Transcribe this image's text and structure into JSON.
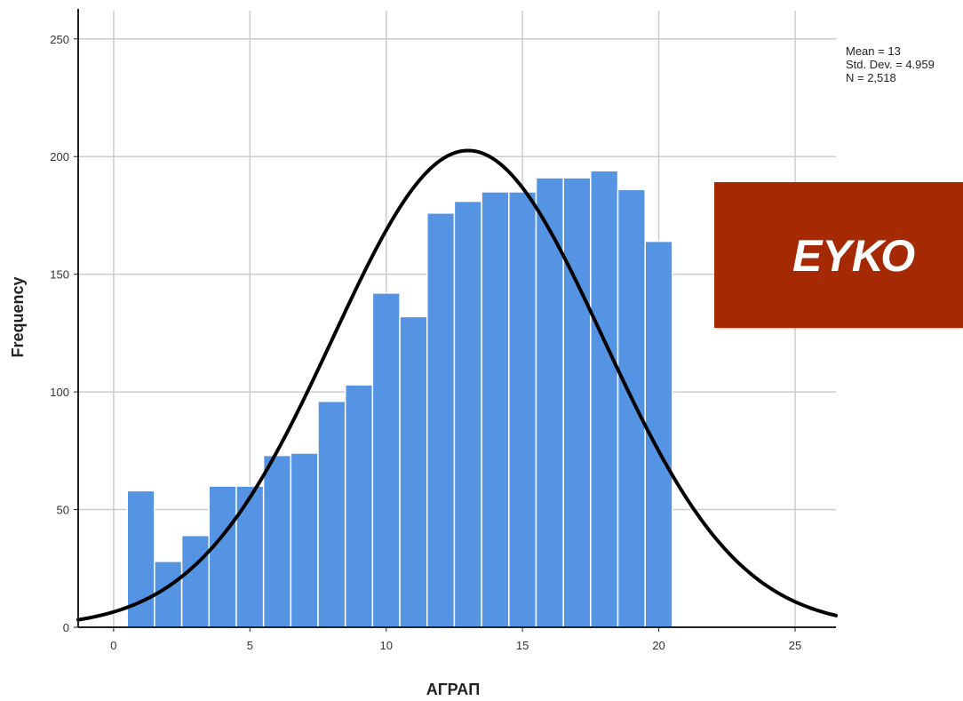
{
  "chart_data": {
    "type": "bar",
    "subtype": "histogram-with-normal-curve",
    "title": "",
    "xlabel": "ΑΓΡΑΠ",
    "ylabel": "Frequency",
    "xlim": [
      -1.3,
      26.5
    ],
    "ylim": [
      0,
      262
    ],
    "x_ticks": [
      0,
      5,
      10,
      15,
      20,
      25
    ],
    "y_ticks": [
      0,
      50,
      100,
      150,
      200,
      250
    ],
    "grid": true,
    "bin_width": 1,
    "bins": [
      {
        "x": 1,
        "value": 58
      },
      {
        "x": 2,
        "value": 28
      },
      {
        "x": 3,
        "value": 39
      },
      {
        "x": 4,
        "value": 60
      },
      {
        "x": 5,
        "value": 60
      },
      {
        "x": 6,
        "value": 73
      },
      {
        "x": 7,
        "value": 74
      },
      {
        "x": 8,
        "value": 96
      },
      {
        "x": 9,
        "value": 103
      },
      {
        "x": 10,
        "value": 142
      },
      {
        "x": 11,
        "value": 132
      },
      {
        "x": 12,
        "value": 176
      },
      {
        "x": 13,
        "value": 181
      },
      {
        "x": 14,
        "value": 185
      },
      {
        "x": 15,
        "value": 185
      },
      {
        "x": 16,
        "value": 191
      },
      {
        "x": 17,
        "value": 191
      },
      {
        "x": 18,
        "value": 194
      },
      {
        "x": 19,
        "value": 186
      },
      {
        "x": 20,
        "value": 164
      }
    ],
    "normal_curve": {
      "mean": 13,
      "std_dev": 4.959,
      "n": 2518
    },
    "stats": {
      "mean": "Mean = 13",
      "std_dev": "Std. Dev. = 4.959",
      "n": "N = 2,518"
    },
    "colors": {
      "bar_fill": "#5593e3",
      "bar_edge": "#ffffff",
      "curve": "#000000",
      "grid": "#cccccc"
    }
  },
  "banner": {
    "text": "ΕΥΚΟ",
    "color": "#a52a04"
  }
}
